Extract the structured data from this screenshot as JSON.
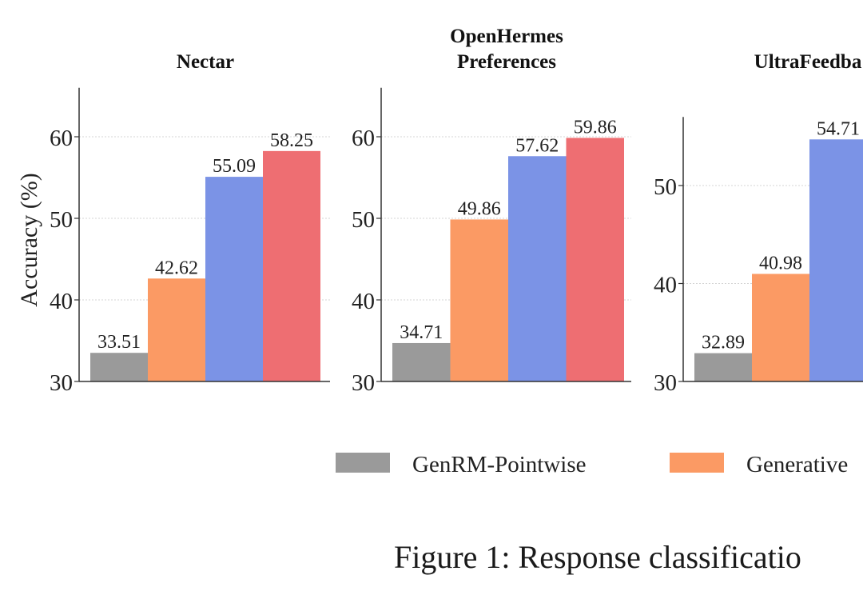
{
  "chart_data": [
    {
      "type": "bar",
      "title": "Nectar",
      "categories": [
        "GenRM-Pointwise",
        "Generative",
        "",
        ""
      ],
      "values": [
        33.51,
        42.62,
        55.09,
        58.25
      ],
      "value_labels": [
        "33.51",
        "42.62",
        "55.09",
        "58.25"
      ],
      "ylabel": "Accuracy (%)",
      "ylim": [
        30,
        66
      ],
      "yticks": [
        "30",
        "40",
        "50",
        "60"
      ],
      "grid": true
    },
    {
      "type": "bar",
      "title": "OpenHermes Preferences",
      "title_lines": [
        "OpenHermes",
        "Preferences"
      ],
      "categories": [
        "GenRM-Pointwise",
        "Generative",
        "",
        ""
      ],
      "values": [
        34.71,
        49.86,
        57.62,
        59.86
      ],
      "value_labels": [
        "34.71",
        "49.86",
        "57.62",
        "59.86"
      ],
      "ylim": [
        30,
        66
      ],
      "yticks": [
        "30",
        "40",
        "50",
        "60"
      ],
      "grid": true
    },
    {
      "type": "bar",
      "title": "UltraFeedba",
      "categories": [
        "GenRM-Pointwise",
        "Generative",
        ""
      ],
      "values": [
        32.89,
        40.98,
        54.71
      ],
      "value_labels": [
        "32.89",
        "40.98",
        "54.71"
      ],
      "ylim": [
        30,
        57
      ],
      "yticks": [
        "30",
        "40",
        "50"
      ],
      "grid": true
    }
  ],
  "colors": [
    "#9a9a9a",
    "#fb9a64",
    "#7b93e6",
    "#ee6e72"
  ],
  "legend": {
    "position": "bottom",
    "entries": [
      {
        "label": "GenRM-Pointwise"
      },
      {
        "label": "Generative"
      }
    ]
  },
  "caption": "Figure 1: Response classificatio"
}
